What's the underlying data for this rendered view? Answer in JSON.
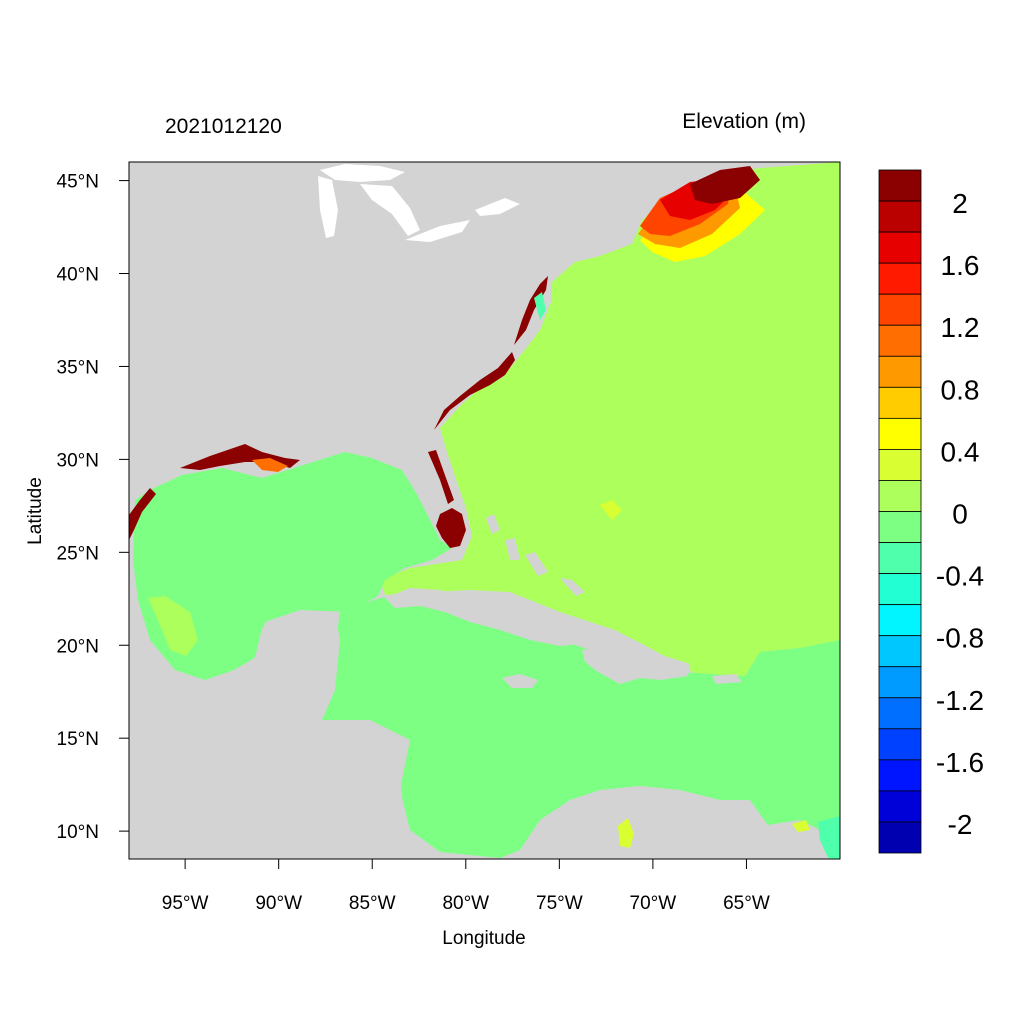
{
  "header": {
    "timestamp": "2021012120",
    "variable_title": "Elevation (m)"
  },
  "axes": {
    "xlabel": "Longitude",
    "ylabel": "Latitude",
    "x_ticks": [
      "95°W",
      "90°W",
      "85°W",
      "80°W",
      "75°W",
      "70°W",
      "65°W"
    ],
    "y_ticks": [
      "45°N",
      "40°N",
      "35°N",
      "30°N",
      "25°N",
      "20°N",
      "15°N",
      "10°N"
    ],
    "x_tick_values": [
      -95,
      -90,
      -85,
      -80,
      -75,
      -70,
      -65
    ],
    "y_tick_values": [
      45,
      40,
      35,
      30,
      25,
      20,
      15,
      10
    ],
    "lon_range": [
      -98.0,
      -60.0
    ],
    "lat_range": [
      8.5,
      46.0
    ]
  },
  "colorbar": {
    "colors": [
      "#8b0000",
      "#bb0000",
      "#e60000",
      "#ff1a00",
      "#ff4400",
      "#ff6e00",
      "#ff9900",
      "#ffcc00",
      "#ffff00",
      "#d9ff33",
      "#adff5b",
      "#7dff84",
      "#50ffab",
      "#22ffd3",
      "#00f5ff",
      "#00c8ff",
      "#009bff",
      "#006eff",
      "#0040ff",
      "#0015ff",
      "#0000d9",
      "#0000b0"
    ],
    "labels": [
      "2",
      "1.6",
      "1.2",
      "0.8",
      "0.4",
      "0",
      "-0.4",
      "-0.8",
      "-1.2",
      "-1.6",
      "-2"
    ]
  },
  "map_colors": {
    "land": "#d3d3d3",
    "lakes": "#ffffff",
    "atlantic": "#adff5b",
    "gulf_caribbean": "#7dff84",
    "negative": "#50ffab",
    "slight_positive": "#d9ff33",
    "surge_high": "#8b0000"
  }
}
